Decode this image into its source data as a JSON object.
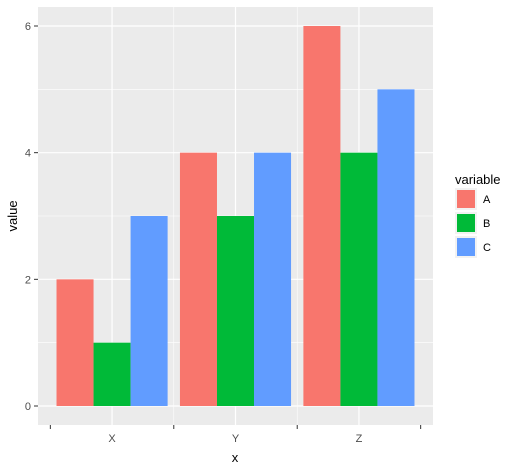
{
  "chart_data": {
    "type": "bar",
    "layout": "grouped",
    "categories": [
      "X",
      "Y",
      "Z"
    ],
    "series": [
      {
        "name": "A",
        "values": [
          2,
          4,
          6
        ],
        "color": "#F8766D"
      },
      {
        "name": "B",
        "values": [
          1,
          3,
          4
        ],
        "color": "#00BA38"
      },
      {
        "name": "C",
        "values": [
          3,
          4,
          5
        ],
        "color": "#619CFF"
      }
    ],
    "xlabel": "x",
    "ylabel": "value",
    "ylim": [
      -0.3,
      6.3
    ],
    "yticks": [
      0,
      2,
      4,
      6
    ],
    "grid": true,
    "panel_background": "#EBEBEB",
    "grid_color": "#FFFFFF",
    "legend": {
      "title": "variable",
      "position": "right"
    }
  }
}
